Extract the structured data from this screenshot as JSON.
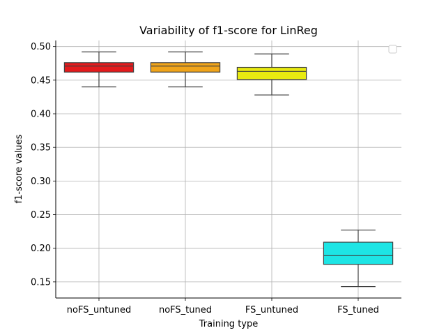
{
  "chart_data": {
    "type": "box",
    "title": "Variability of f1-score  for LinReg",
    "xlabel": "Training type",
    "ylabel": "f1-score values",
    "categories": [
      "noFS_untuned",
      "noFS_tuned",
      "FS_untuned",
      "FS_tuned"
    ],
    "boxes": [
      {
        "category": "noFS_untuned",
        "whisker_low": 0.44,
        "q1": 0.462,
        "median": 0.471,
        "q3": 0.476,
        "whisker_high": 0.492,
        "color": "#e41a1c"
      },
      {
        "category": "noFS_tuned",
        "whisker_low": 0.44,
        "q1": 0.462,
        "median": 0.471,
        "q3": 0.476,
        "whisker_high": 0.492,
        "color": "#f0a41a"
      },
      {
        "category": "FS_untuned",
        "whisker_low": 0.428,
        "q1": 0.451,
        "median": 0.463,
        "q3": 0.469,
        "whisker_high": 0.489,
        "color": "#e8ea10"
      },
      {
        "category": "FS_tuned",
        "whisker_low": 0.143,
        "q1": 0.176,
        "median": 0.189,
        "q3": 0.209,
        "whisker_high": 0.227,
        "color": "#1de5e5"
      }
    ],
    "yticks": [
      0.15,
      0.2,
      0.25,
      0.3,
      0.35,
      0.4,
      0.45,
      0.5
    ],
    "ytick_labels": [
      "0.15",
      "0.20",
      "0.25",
      "0.30",
      "0.35",
      "0.40",
      "0.45",
      "0.50"
    ],
    "ylim": [
      0.126,
      0.509
    ],
    "grid": true,
    "legend": {
      "placement": "upper right",
      "entries": []
    }
  }
}
